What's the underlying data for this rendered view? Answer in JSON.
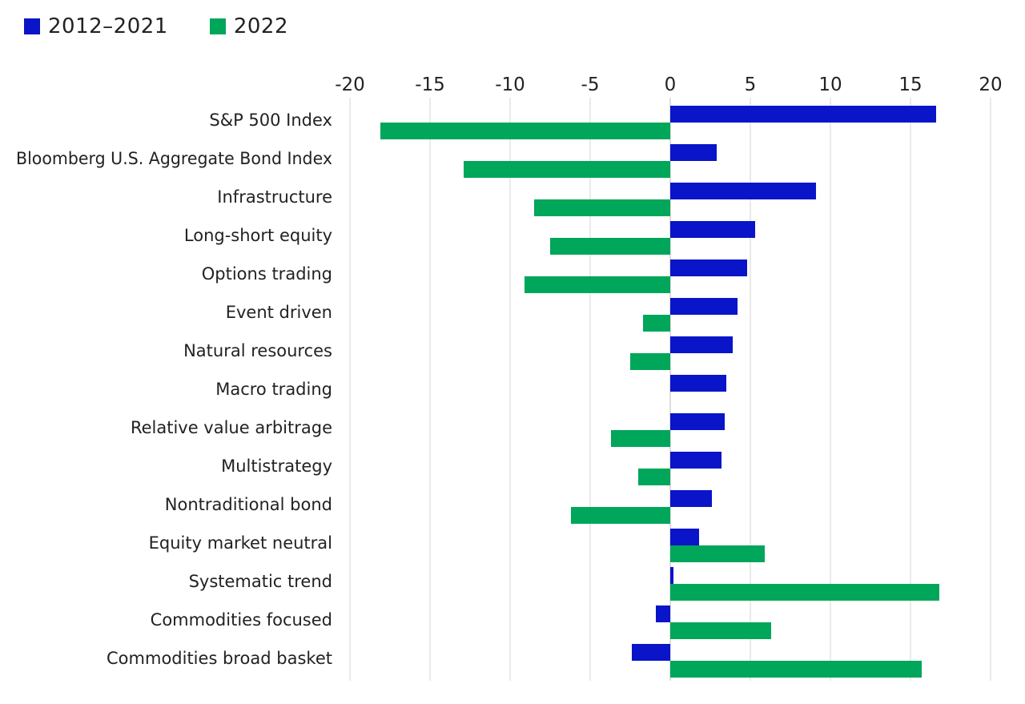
{
  "chart_data": {
    "type": "bar",
    "orientation": "horizontal",
    "categories": [
      "S&P 500 Index",
      "Bloomberg U.S. Aggregate Bond Index",
      "Infrastructure",
      "Long-short equity",
      "Options trading",
      "Event driven",
      "Natural resources",
      "Macro trading",
      "Relative value arbitrage",
      "Multistrategy",
      "Nontraditional bond",
      "Equity market neutral",
      "Systematic trend",
      "Commodities focused",
      "Commodities broad basket"
    ],
    "series": [
      {
        "name": "2012–2021",
        "color": "#0a14c8",
        "values": [
          16.6,
          2.9,
          9.1,
          5.3,
          4.8,
          4.2,
          3.9,
          3.5,
          3.4,
          3.2,
          2.6,
          1.8,
          0.2,
          -0.9,
          -2.4
        ]
      },
      {
        "name": "2022",
        "color": "#00a65a",
        "values": [
          -18.1,
          -12.9,
          -8.5,
          -7.5,
          -9.1,
          -1.7,
          -2.5,
          0,
          -3.7,
          -2.0,
          -6.2,
          5.9,
          16.8,
          6.3,
          15.7
        ]
      }
    ],
    "xlim": [
      -20,
      20
    ],
    "xticks": [
      "-20",
      "-15",
      "-10",
      "-5",
      "0",
      "5",
      "10",
      "15",
      "20"
    ],
    "xtick_values": [
      -20,
      -15,
      -10,
      -5,
      0,
      5,
      10,
      15,
      20
    ],
    "xaxis_position": "top",
    "grid": "vertical",
    "legend_position": "top-left"
  }
}
